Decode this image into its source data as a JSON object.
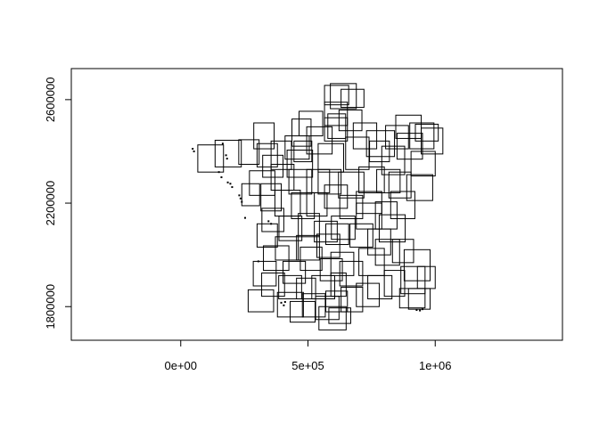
{
  "chart_data": {
    "type": "scatter",
    "title": "",
    "xlabel": "",
    "ylabel": "",
    "xlim": [
      -430000,
      1500000
    ],
    "ylim": [
      1670000,
      2720000
    ],
    "x_ticks": [
      {
        "value": 0,
        "label": "0e+00"
      },
      {
        "value": 500000,
        "label": "5e+05"
      },
      {
        "value": 1000000,
        "label": "1e+06"
      }
    ],
    "y_ticks": [
      {
        "value": 1800000,
        "label": "1800000"
      },
      {
        "value": 2200000,
        "label": "2200000"
      },
      {
        "value": 2600000,
        "label": "2600000"
      }
    ],
    "grid": false,
    "legend": "none",
    "line_color": "#000000",
    "rectangles": [
      [
        67000,
        2320000,
        168000,
        2425000
      ],
      [
        135000,
        2340000,
        238000,
        2443000
      ],
      [
        228000,
        2350000,
        308000,
        2445000
      ],
      [
        287000,
        2410000,
        367000,
        2510000
      ],
      [
        355000,
        2330000,
        435000,
        2440000
      ],
      [
        418000,
        2300000,
        518000,
        2405000
      ],
      [
        437000,
        2420000,
        512000,
        2525000
      ],
      [
        445000,
        2360000,
        515000,
        2440000
      ],
      [
        465000,
        2460000,
        558000,
        2555000
      ],
      [
        495000,
        2390000,
        595000,
        2495000
      ],
      [
        540000,
        2320000,
        640000,
        2430000
      ],
      [
        565000,
        2440000,
        655000,
        2530000
      ],
      [
        565000,
        2500000,
        655000,
        2590000
      ],
      [
        565000,
        2580000,
        660000,
        2655000
      ],
      [
        578000,
        2450000,
        648000,
        2545000
      ],
      [
        588000,
        2565000,
        690000,
        2662000
      ],
      [
        630000,
        2570000,
        720000,
        2640000
      ],
      [
        622000,
        2480000,
        712000,
        2560000
      ],
      [
        648000,
        2330000,
        740000,
        2455000
      ],
      [
        678000,
        2410000,
        770000,
        2510000
      ],
      [
        730000,
        2380000,
        840000,
        2480000
      ],
      [
        742000,
        2360000,
        820000,
        2440000
      ],
      [
        805000,
        2410000,
        895000,
        2500000
      ],
      [
        790000,
        2310000,
        880000,
        2420000
      ],
      [
        850000,
        2370000,
        950000,
        2470000
      ],
      [
        900000,
        2410000,
        995000,
        2510000
      ],
      [
        945000,
        2390000,
        1030000,
        2490000
      ],
      [
        922000,
        2440000,
        1012000,
        2505000
      ],
      [
        905000,
        2305000,
        1000000,
        2400000
      ],
      [
        888000,
        2210000,
        990000,
        2310000
      ],
      [
        818000,
        2220000,
        905000,
        2320000
      ],
      [
        770000,
        2240000,
        862000,
        2330000
      ],
      [
        700000,
        2240000,
        800000,
        2340000
      ],
      [
        620000,
        2220000,
        720000,
        2320000
      ],
      [
        540000,
        2235000,
        630000,
        2330000
      ],
      [
        495000,
        2240000,
        585000,
        2330000
      ],
      [
        425000,
        2235000,
        515000,
        2330000
      ],
      [
        355000,
        2250000,
        445000,
        2350000
      ],
      [
        322000,
        2300000,
        402000,
        2385000
      ],
      [
        270000,
        2230000,
        370000,
        2325000
      ],
      [
        240000,
        2190000,
        310000,
        2275000
      ],
      [
        315000,
        2170000,
        395000,
        2275000
      ],
      [
        370000,
        2150000,
        470000,
        2250000
      ],
      [
        435000,
        2140000,
        525000,
        2240000
      ],
      [
        495000,
        2150000,
        575000,
        2240000
      ],
      [
        565000,
        2180000,
        655000,
        2270000
      ],
      [
        625000,
        2140000,
        715000,
        2230000
      ],
      [
        690000,
        2100000,
        790000,
        2200000
      ],
      [
        765000,
        2100000,
        850000,
        2205000
      ],
      [
        825000,
        2140000,
        920000,
        2245000
      ],
      [
        780000,
        2050000,
        882000,
        2155000
      ],
      [
        735000,
        2000000,
        825000,
        2100000
      ],
      [
        665000,
        2030000,
        755000,
        2120000
      ],
      [
        592000,
        2060000,
        685000,
        2150000
      ],
      [
        525000,
        2050000,
        615000,
        2130000
      ],
      [
        462000,
        2070000,
        545000,
        2160000
      ],
      [
        386000,
        2055000,
        476000,
        2150000
      ],
      [
        319000,
        2090000,
        405000,
        2180000
      ],
      [
        300000,
        2030000,
        380000,
        2120000
      ],
      [
        372000,
        1980000,
        462000,
        2070000
      ],
      [
        455000,
        1980000,
        545000,
        2075000
      ],
      [
        535000,
        1990000,
        625000,
        2080000
      ],
      [
        590000,
        1920000,
        680000,
        2010000
      ],
      [
        625000,
        1880000,
        715000,
        1975000
      ],
      [
        700000,
        1920000,
        800000,
        2025000
      ],
      [
        765000,
        1960000,
        860000,
        2060000
      ],
      [
        832000,
        1970000,
        915000,
        2060000
      ],
      [
        878000,
        1900000,
        980000,
        2020000
      ],
      [
        865000,
        1850000,
        960000,
        1955000
      ],
      [
        800000,
        1840000,
        880000,
        1940000
      ],
      [
        735000,
        1830000,
        830000,
        1920000
      ],
      [
        690000,
        1800000,
        780000,
        1890000
      ],
      [
        630000,
        1780000,
        715000,
        1875000
      ],
      [
        570000,
        1780000,
        655000,
        1860000
      ],
      [
        515000,
        1830000,
        605000,
        1920000
      ],
      [
        455000,
        1830000,
        530000,
        1910000
      ],
      [
        385000,
        1830000,
        475000,
        1920000
      ],
      [
        318000,
        1840000,
        408000,
        1930000
      ],
      [
        285000,
        1880000,
        375000,
        1975000
      ],
      [
        325000,
        1940000,
        425000,
        2035000
      ],
      [
        402000,
        1890000,
        490000,
        1975000
      ],
      [
        470000,
        1940000,
        555000,
        2030000
      ],
      [
        548000,
        1900000,
        635000,
        1985000
      ],
      [
        590000,
        1840000,
        650000,
        1930000
      ],
      [
        530000,
        1750000,
        622000,
        1840000
      ],
      [
        478000,
        1760000,
        568000,
        1850000
      ],
      [
        380000,
        1760000,
        482000,
        1855000
      ],
      [
        265000,
        1780000,
        365000,
        1865000
      ],
      [
        430000,
        1740000,
        528000,
        1820000
      ],
      [
        543000,
        1710000,
        650000,
        1800000
      ],
      [
        582000,
        1735000,
        668000,
        1795000
      ],
      [
        860000,
        1795000,
        960000,
        1870000
      ],
      [
        930000,
        1870000,
        1000000,
        1955000
      ],
      [
        895000,
        1790000,
        980000,
        1870000
      ],
      [
        570000,
        2040000,
        660000,
        2120000
      ],
      [
        690000,
        2160000,
        790000,
        2245000
      ],
      [
        410000,
        2370000,
        505000,
        2460000
      ],
      [
        300000,
        2340000,
        380000,
        2430000
      ],
      [
        845000,
        2450000,
        945000,
        2540000
      ]
    ],
    "small_marks": [
      [
        47000,
        2410000
      ],
      [
        52000,
        2400000
      ],
      [
        165000,
        2430000
      ],
      [
        178000,
        2385000
      ],
      [
        182000,
        2372000
      ],
      [
        150000,
        2320000
      ],
      [
        160000,
        2300000
      ],
      [
        185000,
        2280000
      ],
      [
        195000,
        2275000
      ],
      [
        202000,
        2262000
      ],
      [
        230000,
        2230000
      ],
      [
        235000,
        2218000
      ],
      [
        240000,
        2205000
      ],
      [
        253000,
        2143000
      ],
      [
        305000,
        1975000
      ],
      [
        345000,
        2130000
      ],
      [
        355000,
        2120000
      ],
      [
        395000,
        1815000
      ],
      [
        405000,
        1805000
      ],
      [
        410000,
        1818000
      ],
      [
        927000,
        1787000
      ],
      [
        940000,
        1785000
      ],
      [
        950000,
        1790000
      ]
    ]
  }
}
